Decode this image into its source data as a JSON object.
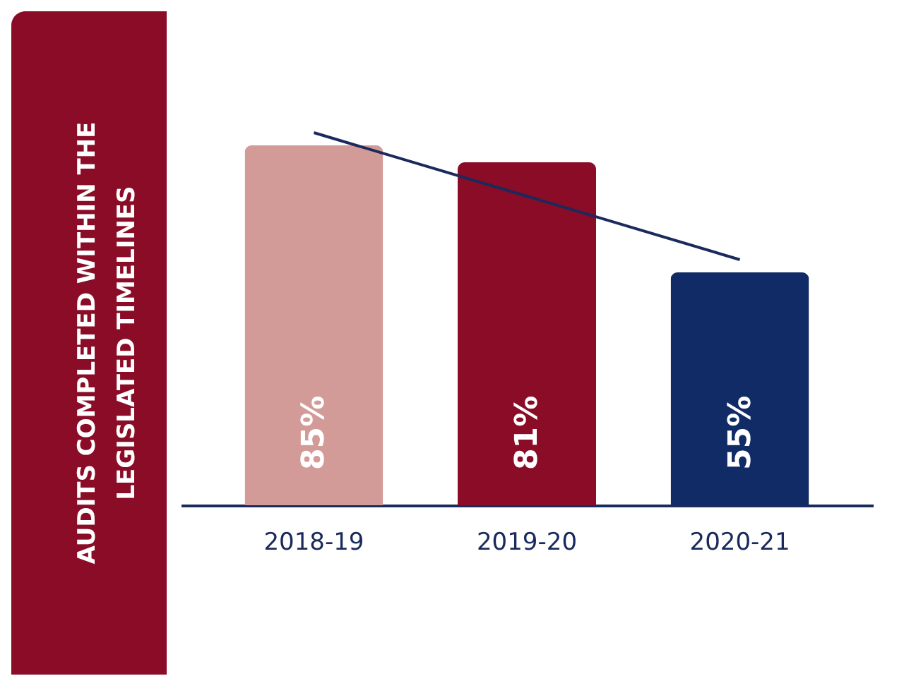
{
  "chart_data": {
    "type": "bar",
    "title": [
      "AUDITS COMPLETED WITHIN THE",
      "LEGISLATED TIMELINES"
    ],
    "categories": [
      "2018-19",
      "2019-20",
      "2020-21"
    ],
    "series": [
      {
        "colors": [
          "#d39b98",
          "#8a0c27",
          "#112b66"
        ],
        "values": [
          85,
          81,
          55
        ],
        "value_labels": [
          "85%",
          "81%",
          "55%"
        ]
      },
      {
        "type": "line",
        "color": "#1b2a5c",
        "values": [
          88,
          73,
          58
        ]
      }
    ],
    "grid": false,
    "tick_labels": "x"
  }
}
